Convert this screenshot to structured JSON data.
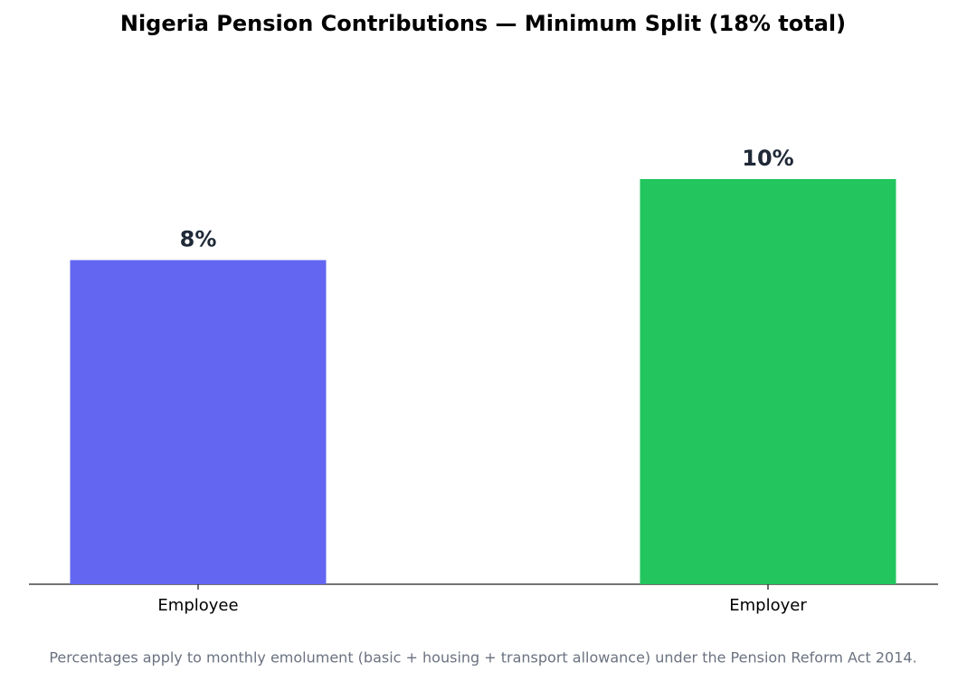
{
  "chart_data": {
    "type": "bar",
    "title": "Nigeria Pension Contributions — Minimum Split (18% total)",
    "categories": [
      "Employee",
      "Employer"
    ],
    "values": [
      8,
      10
    ],
    "value_labels": [
      "8%",
      "10%"
    ],
    "colors": [
      "#6366f1",
      "#22c55e"
    ],
    "ylim": [
      0,
      12
    ],
    "footnote": "Percentages apply to monthly emolument (basic + housing + transport allowance) under the Pension Reform Act 2014."
  }
}
